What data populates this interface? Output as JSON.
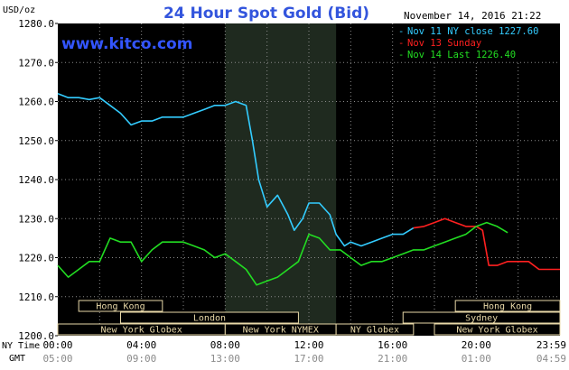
{
  "chart_data": {
    "type": "line",
    "title": "24 Hour Spot Gold (Bid)",
    "watermark": "www.kitco.com",
    "date_label": "November 14, 2016 21:22",
    "ylabel": "USD/oz",
    "ylim": [
      1200,
      1280
    ],
    "y_ticks": [
      "1280.0",
      "1270.0",
      "1260.0",
      "1250.0",
      "1240.0",
      "1230.0",
      "1220.0",
      "1210.0",
      "1200.0"
    ],
    "x_ticks_ny": [
      "00:00",
      "04:00",
      "08:00",
      "12:00",
      "16:00",
      "20:00",
      "23:59"
    ],
    "x_ticks_gmt": [
      "05:00",
      "09:00",
      "13:00",
      "17:00",
      "21:00",
      "01:00",
      "04:59"
    ],
    "x_row_label_ny": "NY Time",
    "x_row_label_gmt": "GMT",
    "xlim_hours": [
      0,
      24
    ],
    "grid": true,
    "legend_position": "top-right",
    "legend": [
      {
        "label": "Nov 11 NY close 1227.60",
        "color": "#33ccff"
      },
      {
        "label": "Nov 13 Sunday",
        "color": "#ff2020"
      },
      {
        "label": "Nov 14 Last 1226.40",
        "color": "#22dd22"
      }
    ],
    "sessions": [
      {
        "label": "Hong Kong",
        "start_hour": 1.0,
        "end_hour": 5.0
      },
      {
        "label": "London",
        "start_hour": 3.0,
        "end_hour": 11.5
      },
      {
        "label": "New York Globex",
        "start_hour": 0.0,
        "end_hour": 8.0
      },
      {
        "label": "New York NYMEX",
        "start_hour": 8.0,
        "end_hour": 13.3
      },
      {
        "label": "NY Globex",
        "start_hour": 13.3,
        "end_hour": 17.0
      },
      {
        "label": "Hong Kong",
        "start_hour": 19.0,
        "end_hour": 24.0
      },
      {
        "label": "Sydney",
        "start_hour": 16.5,
        "end_hour": 24.0
      },
      {
        "label": "New York Globex",
        "start_hour": 18.0,
        "end_hour": 24.0
      }
    ],
    "highlight_hours": [
      8.0,
      13.3
    ],
    "series": [
      {
        "name": "Nov 11 NY close 1227.60",
        "color": "#33ccff",
        "x": [
          0,
          0.5,
          1.0,
          1.5,
          2.0,
          2.5,
          3.0,
          3.5,
          4.0,
          4.5,
          5.0,
          5.5,
          6.0,
          6.5,
          7.0,
          7.5,
          8.0,
          8.5,
          9.0,
          9.3,
          9.6,
          10.0,
          10.5,
          11.0,
          11.3,
          11.7,
          12.0,
          12.5,
          13.0,
          13.3,
          13.7,
          14.0,
          14.5,
          15.0,
          15.5,
          16.0,
          16.5,
          17.0
        ],
        "y": [
          1262,
          1261,
          1261,
          1260.5,
          1261,
          1259,
          1257,
          1254,
          1255,
          1255,
          1256,
          1256,
          1256,
          1257,
          1258,
          1259,
          1259,
          1260,
          1259,
          1250,
          1240,
          1233,
          1236,
          1231,
          1227,
          1230,
          1234,
          1234,
          1231,
          1226,
          1223,
          1224,
          1223,
          1224,
          1225,
          1226,
          1226,
          1227.6
        ]
      },
      {
        "name": "Nov 13 Sunday",
        "color": "#ff2020",
        "x": [
          17.0,
          17.5,
          18.0,
          18.5,
          19.0,
          19.5,
          20.0,
          20.3,
          20.6,
          21.0,
          21.5,
          22.0,
          22.5,
          23.0,
          23.5,
          24.0
        ],
        "y": [
          1227.6,
          1228,
          1229,
          1230,
          1229,
          1228,
          1228,
          1227,
          1218,
          1218,
          1219,
          1219,
          1219,
          1217,
          1217,
          1217
        ]
      },
      {
        "name": "Nov 14 Last 1226.40",
        "color": "#22dd22",
        "x": [
          0,
          0.5,
          1.0,
          1.5,
          2.0,
          2.5,
          3.0,
          3.5,
          4.0,
          4.5,
          5.0,
          5.5,
          6.0,
          6.5,
          7.0,
          7.5,
          8.0,
          8.5,
          9.0,
          9.5,
          10.0,
          10.5,
          11.0,
          11.5,
          12.0,
          12.5,
          13.0,
          13.5,
          14.0,
          14.5,
          15.0,
          15.5,
          16.0,
          16.5,
          17.0,
          17.5,
          18.0,
          18.5,
          19.0,
          19.5,
          20.0,
          20.5,
          21.0,
          21.5
        ],
        "y": [
          1218,
          1215,
          1217,
          1219,
          1219,
          1225,
          1224,
          1224,
          1219,
          1222,
          1224,
          1224,
          1224,
          1223,
          1222,
          1220,
          1221,
          1219,
          1217,
          1213,
          1214,
          1215,
          1217,
          1219,
          1226,
          1225,
          1222,
          1222,
          1220,
          1218,
          1219,
          1219,
          1220,
          1221,
          1222,
          1222,
          1223,
          1224,
          1225,
          1226,
          1228,
          1229,
          1228,
          1226.4
        ]
      }
    ]
  }
}
